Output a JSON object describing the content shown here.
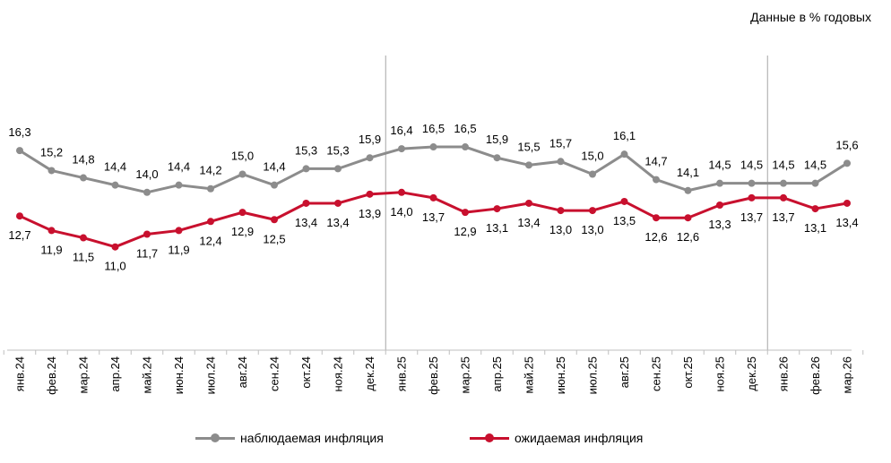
{
  "chart_data": {
    "type": "line",
    "title": "",
    "note": "Данные в % годовых",
    "categories": [
      "янв.24",
      "фев.24",
      "мар.24",
      "апр.24",
      "май.24",
      "июн.24",
      "июл.24",
      "авг.24",
      "сен.24",
      "окт.24",
      "ноя.24",
      "дек.24",
      "янв.25",
      "фев.25",
      "мар.25",
      "апр.25",
      "май.25",
      "июн.25",
      "июл.25",
      "авг.25",
      "сен.25",
      "окт.25",
      "ноя.25",
      "дек.25",
      "янв.26",
      "фев.26",
      "мар.26"
    ],
    "series": [
      {
        "name": "наблюдаемая инфляция",
        "color": "#8c8c8c",
        "values": [
          16.3,
          15.2,
          14.8,
          14.4,
          14.0,
          14.4,
          14.2,
          15.0,
          14.4,
          15.3,
          15.3,
          15.9,
          16.4,
          16.5,
          16.5,
          15.9,
          15.5,
          15.7,
          15.0,
          16.1,
          14.7,
          14.1,
          14.5,
          14.5,
          14.5,
          14.5,
          15.6
        ],
        "labels": [
          "16,3",
          "15,2",
          "14,8",
          "14,4",
          "14,0",
          "14,4",
          "14,2",
          "15,0",
          "14,4",
          "15,3",
          "15,3",
          "15,9",
          "16,4",
          "16,5",
          "16,5",
          "15,9",
          "15,5",
          "15,7",
          "15,0",
          "16,1",
          "14,7",
          "14,1",
          "14,5",
          "14,5",
          "14,5",
          "14,5",
          "15,6"
        ]
      },
      {
        "name": "ожидаемая инфляция",
        "color": "#c8102e",
        "values": [
          12.7,
          11.9,
          11.5,
          11.0,
          11.7,
          11.9,
          12.4,
          12.9,
          12.5,
          13.4,
          13.4,
          13.9,
          14.0,
          13.7,
          12.9,
          13.1,
          13.4,
          13.0,
          13.0,
          13.5,
          12.6,
          12.6,
          13.3,
          13.7,
          13.7,
          13.1,
          13.4
        ],
        "labels": [
          "12,7",
          "11,9",
          "11,5",
          "11,0",
          "11,7",
          "11,9",
          "12,4",
          "12,9",
          "12,5",
          "13,4",
          "13,4",
          "13,9",
          "14,0",
          "13,7",
          "12,9",
          "13,1",
          "13,4",
          "13,0",
          "13,0",
          "13,5",
          "12,6",
          "12,6",
          "13,3",
          "13,7",
          "13,7",
          "13,1",
          "13,4"
        ]
      }
    ],
    "separators_after": [
      "дек.24",
      "дек.25"
    ],
    "grid": false,
    "legend_position": "bottom"
  }
}
